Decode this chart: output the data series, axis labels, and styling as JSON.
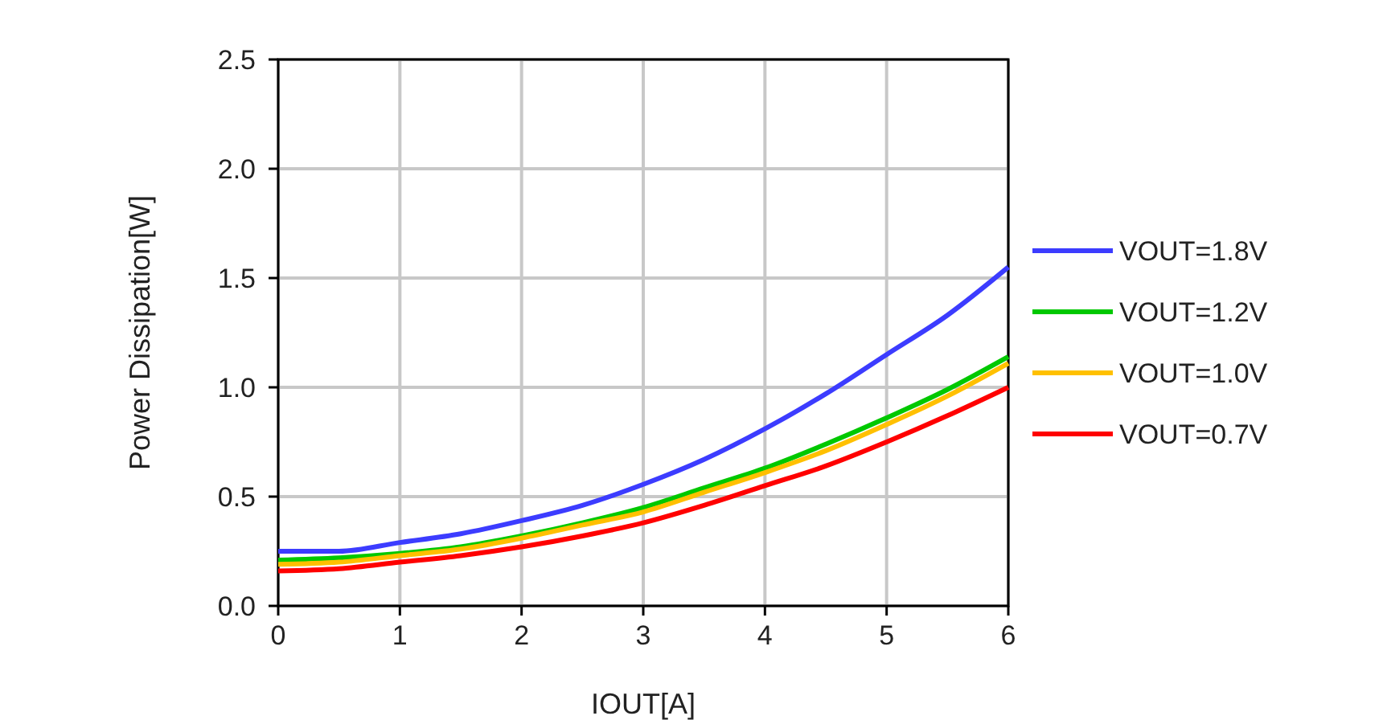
{
  "chart_data": {
    "type": "line",
    "xlabel": "IOUT[A]",
    "ylabel": "Power Dissipation[W]",
    "x": [
      0,
      0.5,
      1,
      1.5,
      2,
      2.5,
      3,
      3.5,
      4,
      4.5,
      5,
      5.5,
      6
    ],
    "series": [
      {
        "name": "VOUT=1.8V",
        "color": "#3c3cff",
        "values": [
          0.25,
          0.25,
          0.29,
          0.33,
          0.39,
          0.46,
          0.556,
          0.67,
          0.81,
          0.97,
          1.15,
          1.33,
          1.55
        ]
      },
      {
        "name": "VOUT=1.2V",
        "color": "#00c800",
        "values": [
          0.21,
          0.22,
          0.24,
          0.27,
          0.32,
          0.38,
          0.45,
          0.54,
          0.63,
          0.74,
          0.86,
          0.99,
          1.14
        ]
      },
      {
        "name": "VOUT=1.0V",
        "color": "#ffc000",
        "values": [
          0.19,
          0.2,
          0.23,
          0.26,
          0.31,
          0.37,
          0.43,
          0.52,
          0.61,
          0.71,
          0.83,
          0.96,
          1.11
        ]
      },
      {
        "name": "VOUT=0.7V",
        "color": "#ff0000",
        "values": [
          0.16,
          0.17,
          0.2,
          0.23,
          0.27,
          0.32,
          0.38,
          0.46,
          0.55,
          0.64,
          0.75,
          0.87,
          1.0
        ]
      }
    ],
    "xlim": [
      0,
      6
    ],
    "xticks": [
      0,
      1,
      2,
      3,
      4,
      5,
      6
    ],
    "ylim": [
      0,
      2.5
    ],
    "yticks": [
      {
        "value": 0,
        "label": "0.0"
      },
      {
        "value": 0.5,
        "label": "0.5"
      },
      {
        "value": 1,
        "label": "1.0"
      },
      {
        "value": 1.5,
        "label": "1.5"
      },
      {
        "value": 2,
        "label": "2.0"
      },
      {
        "value": 2.5,
        "label": "2.5"
      }
    ],
    "grid": true,
    "legend": "right",
    "line_style": "solid",
    "marker": "none"
  }
}
